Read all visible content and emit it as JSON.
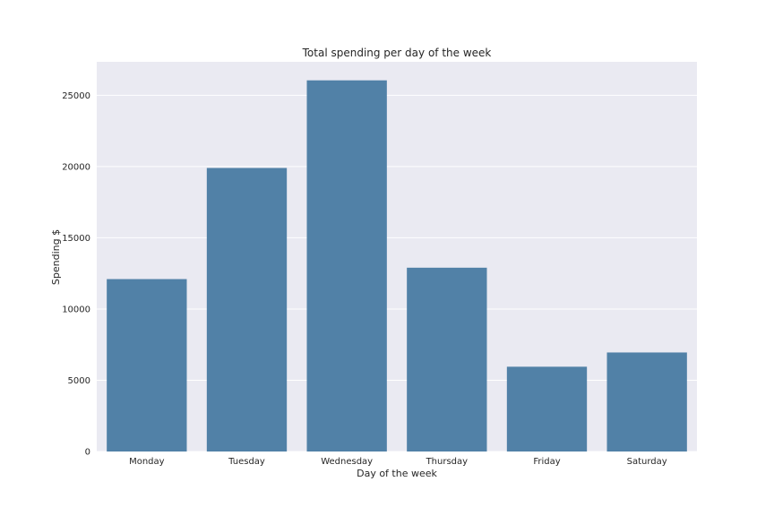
{
  "chart_data": {
    "type": "bar",
    "title": "Total spending per day of the week",
    "xlabel": "Day of the week",
    "ylabel": "Spending $",
    "categories": [
      "Monday",
      "Tuesday",
      "Wednesday",
      "Thursday",
      "Friday",
      "Saturday"
    ],
    "values": [
      12100,
      19900,
      26050,
      12900,
      5950,
      6950
    ],
    "ylim": [
      0,
      27350
    ],
    "yticks": [
      0,
      5000,
      10000,
      15000,
      20000,
      25000
    ],
    "ytick_labels": [
      "0",
      "5000",
      "10000",
      "15000",
      "20000",
      "25000"
    ],
    "grid": true,
    "grid_axis": "y",
    "colors": {
      "bar": "#5181a7",
      "background": "#eaeaf2",
      "grid": "#ffffff",
      "text": "#262626"
    }
  }
}
